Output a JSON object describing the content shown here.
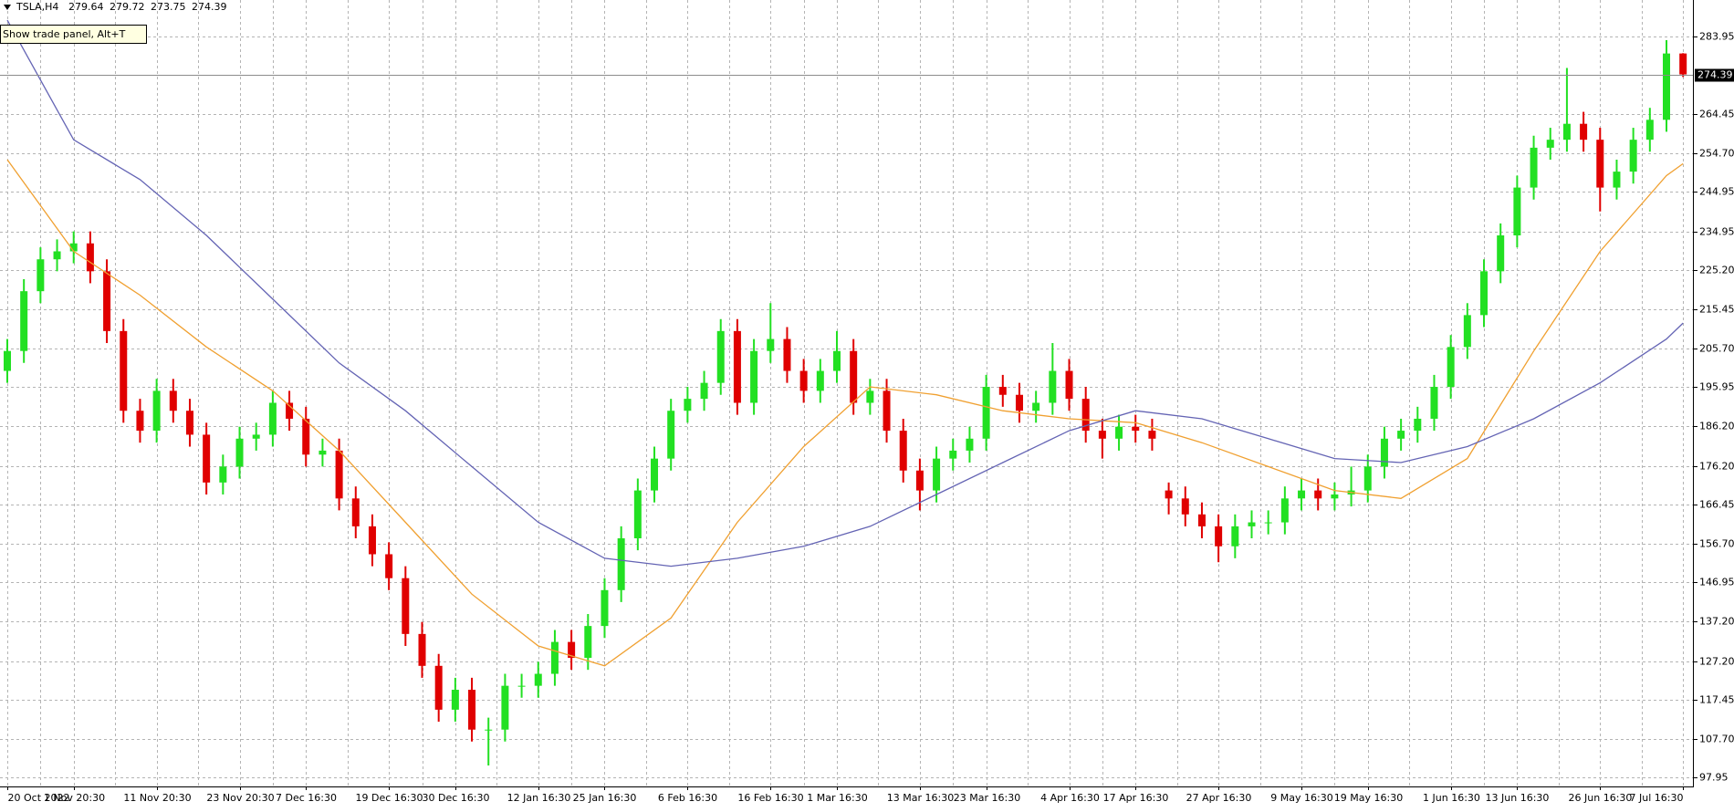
{
  "chart_data": {
    "type": "candlestick",
    "symbol": "TSLA,H4",
    "tooltip": "Show trade panel, Alt+T",
    "categories": [
      "20 Oct 2022",
      null,
      null,
      null,
      "1 Nov 20:30",
      null,
      null,
      null,
      null,
      "11 Nov 20:30",
      null,
      null,
      null,
      null,
      "23 Nov 20:30",
      null,
      null,
      null,
      "7 Dec 16:30",
      null,
      null,
      null,
      null,
      "19 Dec 16:30",
      null,
      null,
      null,
      "30 Dec 16:30",
      null,
      null,
      null,
      null,
      "12 Jan 16:30",
      null,
      null,
      null,
      "25 Jan 16:30",
      null,
      null,
      null,
      null,
      "6 Feb 16:30",
      null,
      null,
      null,
      null,
      "16 Feb 16:30",
      null,
      null,
      null,
      "1 Mar 16:30",
      null,
      null,
      null,
      null,
      "13 Mar 16:30",
      null,
      null,
      null,
      "23 Mar 16:30",
      null,
      null,
      null,
      null,
      "4 Apr 16:30",
      null,
      null,
      null,
      "17 Apr 16:30",
      null,
      null,
      null,
      null,
      "27 Apr 16:30",
      null,
      null,
      null,
      null,
      "9 May 16:30",
      null,
      null,
      null,
      "19 May 16:30",
      null,
      null,
      null,
      null,
      "1 Jun 16:30",
      null,
      null,
      null,
      "13 Jun 16:30",
      null,
      null,
      null,
      null,
      "26 Jun 16:30",
      null,
      null,
      null,
      null,
      "7 Jul 16:30"
    ],
    "open": [
      200,
      205,
      220,
      228,
      230,
      232,
      225,
      210,
      190,
      185,
      195,
      190,
      184,
      172,
      176,
      183,
      184,
      192,
      188,
      179,
      180,
      168,
      161,
      154,
      148,
      134,
      126,
      115,
      120,
      110,
      110,
      121,
      121,
      124,
      132,
      128,
      136,
      145,
      158,
      170,
      178,
      190,
      193,
      197,
      210,
      192,
      205,
      208,
      200,
      195,
      200,
      205,
      192,
      195,
      185,
      175,
      170,
      178,
      180,
      183,
      196,
      194,
      190,
      192,
      200,
      193,
      185,
      183,
      186,
      185,
      170,
      168,
      164,
      161,
      156,
      161,
      162,
      162,
      168,
      170,
      168,
      169,
      170,
      176,
      183,
      185,
      188,
      196,
      206,
      214,
      225,
      234,
      246,
      256,
      258,
      262,
      258,
      246,
      250,
      258,
      263,
      279.64
    ],
    "high": [
      208,
      223,
      231,
      233,
      235,
      235,
      228,
      213,
      193,
      198,
      198,
      193,
      187,
      179,
      186,
      187,
      195,
      195,
      191,
      183,
      183,
      171,
      164,
      157,
      151,
      137,
      129,
      123,
      123,
      113,
      124,
      124,
      127,
      135,
      135,
      139,
      148,
      161,
      173,
      181,
      193,
      196,
      200,
      213,
      213,
      208,
      217,
      211,
      203,
      203,
      210,
      208,
      198,
      198,
      188,
      178,
      181,
      183,
      186,
      199,
      199,
      197,
      195,
      207,
      203,
      196,
      188,
      189,
      189,
      188,
      172,
      171,
      167,
      164,
      164,
      165,
      165,
      171,
      173,
      173,
      172,
      176,
      179,
      186,
      188,
      191,
      199,
      209,
      217,
      228,
      237,
      249,
      259,
      261,
      276,
      265,
      261,
      253,
      261,
      266,
      283,
      279.72
    ],
    "low": [
      197,
      202,
      217,
      225,
      227,
      222,
      207,
      187,
      182,
      182,
      187,
      181,
      169,
      169,
      173,
      180,
      181,
      185,
      176,
      176,
      165,
      158,
      151,
      145,
      131,
      123,
      112,
      112,
      107,
      101,
      107,
      118,
      118,
      121,
      125,
      125,
      133,
      142,
      155,
      167,
      175,
      187,
      190,
      194,
      189,
      189,
      202,
      197,
      192,
      192,
      197,
      189,
      189,
      182,
      172,
      165,
      167,
      175,
      177,
      180,
      191,
      187,
      187,
      189,
      190,
      182,
      178,
      180,
      182,
      180,
      164,
      161,
      158,
      152,
      153,
      158,
      159,
      159,
      165,
      165,
      165,
      166,
      167,
      173,
      180,
      182,
      185,
      193,
      203,
      211,
      222,
      231,
      243,
      253,
      255,
      255,
      240,
      243,
      247,
      255,
      260,
      273.75
    ],
    "close": [
      205,
      220,
      228,
      230,
      232,
      225,
      210,
      190,
      185,
      195,
      190,
      184,
      172,
      176,
      183,
      184,
      192,
      188,
      179,
      180,
      168,
      161,
      154,
      148,
      134,
      126,
      115,
      120,
      110,
      110,
      121,
      121,
      124,
      132,
      128,
      136,
      145,
      158,
      170,
      178,
      190,
      193,
      197,
      210,
      192,
      205,
      208,
      200,
      195,
      200,
      205,
      192,
      195,
      185,
      175,
      170,
      178,
      180,
      183,
      196,
      194,
      190,
      192,
      200,
      193,
      185,
      183,
      186,
      185,
      183,
      168,
      164,
      161,
      156,
      161,
      162,
      162,
      168,
      170,
      168,
      169,
      170,
      176,
      183,
      185,
      188,
      196,
      206,
      214,
      225,
      234,
      246,
      256,
      258,
      262,
      258,
      246,
      250,
      258,
      263,
      279.64,
      274.39
    ],
    "up_color": "#22e022",
    "down_color": "#e00000",
    "overlays": [
      {
        "color": "#f0a030",
        "x": [
          0,
          4,
          8,
          12,
          16,
          20,
          24,
          28,
          32,
          36,
          40,
          44,
          48,
          52,
          56,
          60,
          64,
          68,
          72,
          76,
          80,
          84,
          88,
          92,
          96,
          100,
          101
        ],
        "values": [
          253,
          230,
          219,
          206,
          195,
          180,
          162,
          144,
          131,
          126,
          138,
          162,
          181,
          196,
          194,
          190,
          188,
          187,
          182,
          176,
          170,
          168,
          178,
          205,
          230,
          249,
          252
        ]
      },
      {
        "color": "#6464b4",
        "x": [
          0,
          4,
          8,
          12,
          16,
          20,
          24,
          28,
          32,
          36,
          40,
          44,
          48,
          52,
          56,
          60,
          64,
          68,
          72,
          76,
          80,
          84,
          88,
          92,
          96,
          100,
          101
        ],
        "values": [
          288,
          258,
          248,
          234,
          218,
          202,
          190,
          176,
          162,
          153,
          151,
          153,
          156,
          161,
          169,
          177,
          185,
          190,
          188,
          183,
          178,
          177,
          181,
          188,
          197,
          208,
          212
        ]
      }
    ],
    "price_line": 274.39,
    "ylim": [
      95.74,
      293.06
    ],
    "yticks": [
      283.95,
      {
        "value": 264.45,
        "label": "264.45"
      },
      {
        "value": 254.7,
        "label": "254.70"
      },
      244.95,
      234.95,
      {
        "value": 225.2,
        "label": "225.20"
      },
      215.45,
      {
        "value": 205.7,
        "label": "205.70"
      },
      195.95,
      {
        "value": 186.2,
        "label": "186.20"
      },
      {
        "value": 176.2,
        "label": "176.20"
      },
      166.45,
      {
        "value": 156.7,
        "label": "156.70"
      },
      146.95,
      {
        "value": 137.2,
        "label": "137.20"
      },
      {
        "value": 127.2,
        "label": "127.20"
      },
      117.45,
      {
        "value": 107.7,
        "label": "107.70"
      },
      97.95
    ],
    "grid": true
  }
}
